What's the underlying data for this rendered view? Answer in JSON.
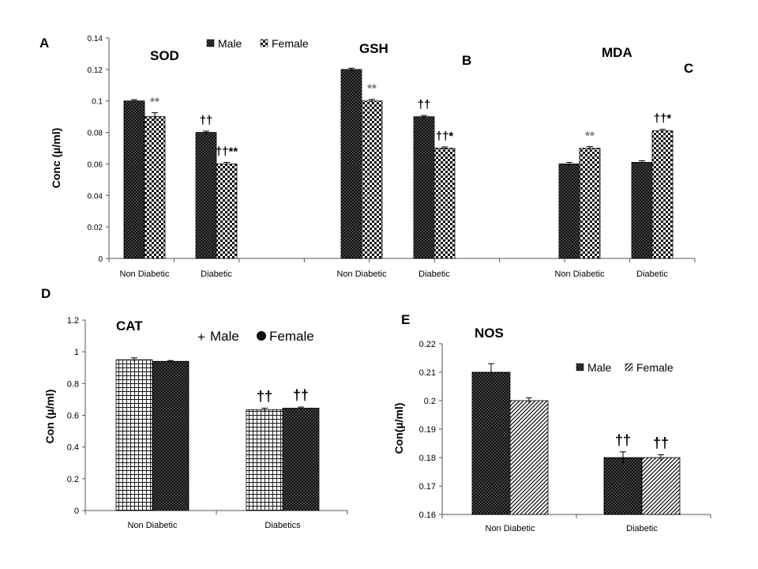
{
  "chart_data": [
    {
      "panel": "A",
      "type": "bar",
      "groups": [
        {
          "label": "SOD",
          "categories": [
            "Non Diabetic",
            "Diabetic"
          ],
          "series": [
            {
              "name": "Male",
              "values": [
                0.1,
                0.08
              ],
              "errors": [
                0.0008,
                0.0008
              ]
            },
            {
              "name": "Female",
              "values": [
                0.09,
                0.06
              ],
              "errors": [
                0.0025,
                0.001
              ]
            }
          ]
        },
        {
          "label": "GSH",
          "categories": [
            "Non Diabetic",
            "Diabetic"
          ],
          "series": [
            {
              "name": "Male",
              "values": [
                0.12,
                0.09
              ],
              "errors": [
                0.0008,
                0.0008
              ]
            },
            {
              "name": "Female",
              "values": [
                0.1,
                0.07
              ],
              "errors": [
                0.001,
                0.0008
              ]
            }
          ]
        },
        {
          "label": "MDA",
          "categories": [
            "Non Diabetic",
            "Diabetic"
          ],
          "series": [
            {
              "name": "Male",
              "values": [
                0.06,
                0.061
              ],
              "errors": [
                0.001,
                0.001
              ]
            },
            {
              "name": "Female",
              "values": [
                0.07,
                0.081
              ],
              "errors": [
                0.001,
                0.001
              ]
            }
          ]
        }
      ],
      "ylabel": "Conc (µ/ml)",
      "ylim": [
        0,
        0.14
      ],
      "yticks": [
        "0",
        "0.02",
        "0.04",
        "0.06",
        "0.08",
        "0.1",
        "0.12",
        "0.14"
      ],
      "legend": [
        "Male",
        "Female"
      ],
      "legend_position": "top",
      "grid": false,
      "panel_letters_extra": [
        "B",
        "C"
      ],
      "annotations": [
        {
          "group": 0,
          "category": 0,
          "series": 1,
          "text": "**",
          "color": "#777777"
        },
        {
          "group": 0,
          "category": 1,
          "series": 0,
          "text": "††",
          "color": "#000000"
        },
        {
          "group": 0,
          "category": 1,
          "series": 1,
          "text": "††**",
          "color": "#000000"
        },
        {
          "group": 1,
          "category": 0,
          "series": 1,
          "text": "**",
          "color": "#777777"
        },
        {
          "group": 1,
          "category": 1,
          "series": 0,
          "text": "††",
          "color": "#000000"
        },
        {
          "group": 1,
          "category": 1,
          "series": 1,
          "text": "††*",
          "color": "#000000"
        },
        {
          "group": 2,
          "category": 0,
          "series": 1,
          "text": "**",
          "color": "#777777"
        },
        {
          "group": 2,
          "category": 1,
          "series": 1,
          "text": "††*",
          "color": "#000000"
        }
      ]
    },
    {
      "panel": "D",
      "type": "bar",
      "title": "CAT",
      "categories": [
        "Non Diabetic",
        "Diabetics"
      ],
      "series": [
        {
          "name": "Male",
          "values": [
            0.95,
            0.635
          ],
          "errors": [
            0.012,
            0.01
          ]
        },
        {
          "name": "Female",
          "values": [
            0.94,
            0.645
          ],
          "errors": [
            0.005,
            0.007
          ]
        }
      ],
      "ylabel": "Con  (µ/ml)",
      "ylim": [
        0,
        1.2
      ],
      "yticks": [
        "0",
        "0.2",
        "0.4",
        "0.6",
        "0.8",
        "1",
        "1.2"
      ],
      "legend": [
        "Male",
        "Female"
      ],
      "legend_position": "top-right",
      "grid": false,
      "annotations": [
        {
          "category": 1,
          "series": 0,
          "text": "††",
          "color": "#000000"
        },
        {
          "category": 1,
          "series": 1,
          "text": "††",
          "color": "#000000"
        }
      ]
    },
    {
      "panel": "E",
      "type": "bar",
      "title": "NOS",
      "categories": [
        "Non Diabetic",
        "Diabetic"
      ],
      "series": [
        {
          "name": "Male",
          "values": [
            0.21,
            0.18
          ],
          "errors": [
            0.003,
            0.002
          ]
        },
        {
          "name": "Female",
          "values": [
            0.2,
            0.18
          ],
          "errors": [
            0.001,
            0.001
          ]
        }
      ],
      "ylabel": "Con(µ/ml)",
      "ylim": [
        0.16,
        0.22
      ],
      "yticks": [
        "0.16",
        "0.17",
        "0.18",
        "0.19",
        "0.2",
        "0.21",
        "0.22"
      ],
      "legend": [
        "Male",
        "Female"
      ],
      "legend_position": "top-right",
      "grid": false,
      "annotations": [
        {
          "category": 1,
          "series": 0,
          "text": "††",
          "color": "#000000"
        },
        {
          "category": 1,
          "series": 1,
          "text": "††",
          "color": "#000000"
        }
      ]
    }
  ]
}
